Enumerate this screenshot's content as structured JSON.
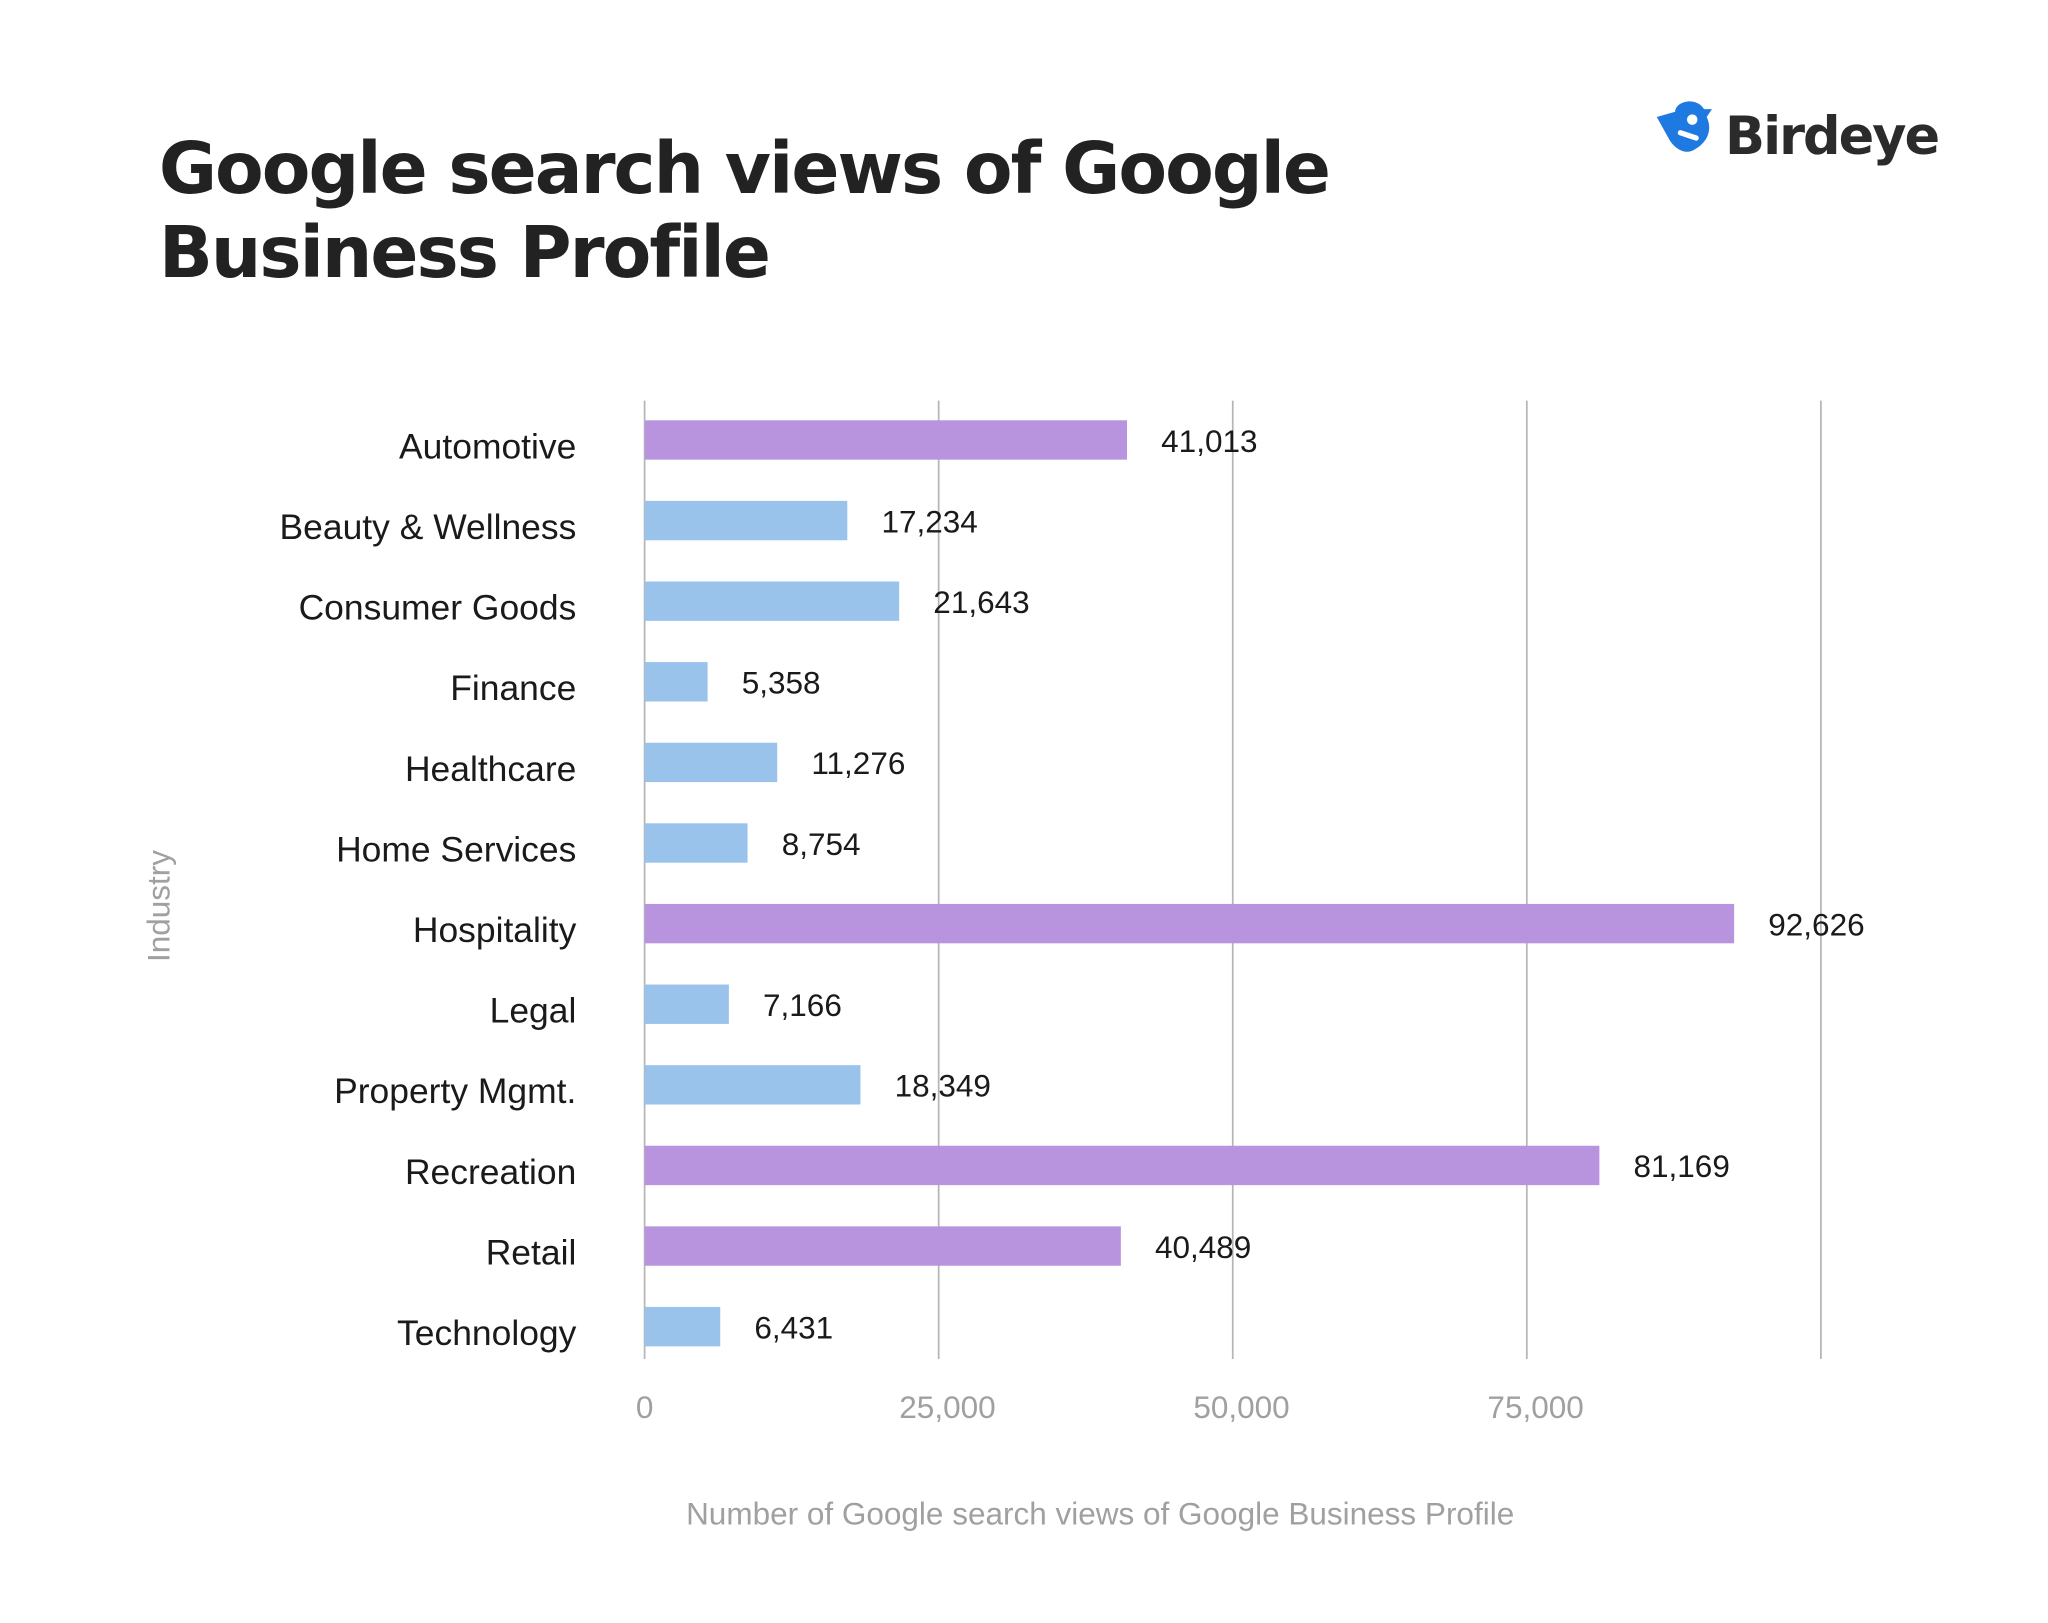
{
  "brand": {
    "name": "Birdeye",
    "icon": "bird-logo-icon",
    "color": "#1e7ae0"
  },
  "colors": {
    "highlight": "#b894de",
    "normal": "#9ac3eb",
    "grid": "#b5b5b5"
  },
  "chart_data": {
    "type": "bar",
    "orientation": "horizontal",
    "title": [
      "Google search views of Google",
      "Business Profile"
    ],
    "xlabel": "Number of Google search views of Google Business Profile",
    "ylabel": "Industry",
    "xlim": [
      0,
      100000
    ],
    "xticks": [
      0,
      25000,
      50000,
      75000,
      100000
    ],
    "xtick_labels": [
      "0",
      "25,000",
      "50,000",
      "75,000",
      ""
    ],
    "grid": "vertical",
    "categories": [
      "Automotive",
      "Beauty & Wellness",
      "Consumer Goods",
      "Finance",
      "Healthcare",
      "Home Services",
      "Hospitality",
      "Legal",
      "Property Mgmt.",
      "Recreation",
      "Retail",
      "Technology"
    ],
    "values": [
      41013,
      17234,
      21643,
      5358,
      11276,
      8754,
      92626,
      7166,
      18349,
      81169,
      40489,
      6431
    ],
    "value_labels": [
      "41,013",
      "17,234",
      "21,643",
      "5,358",
      "11,276",
      "8,754",
      "92,626",
      "7,166",
      "18,349",
      "81,169",
      "40,489",
      "6,431"
    ],
    "highlighted": [
      true,
      false,
      false,
      false,
      false,
      false,
      true,
      false,
      false,
      true,
      true,
      false
    ]
  }
}
